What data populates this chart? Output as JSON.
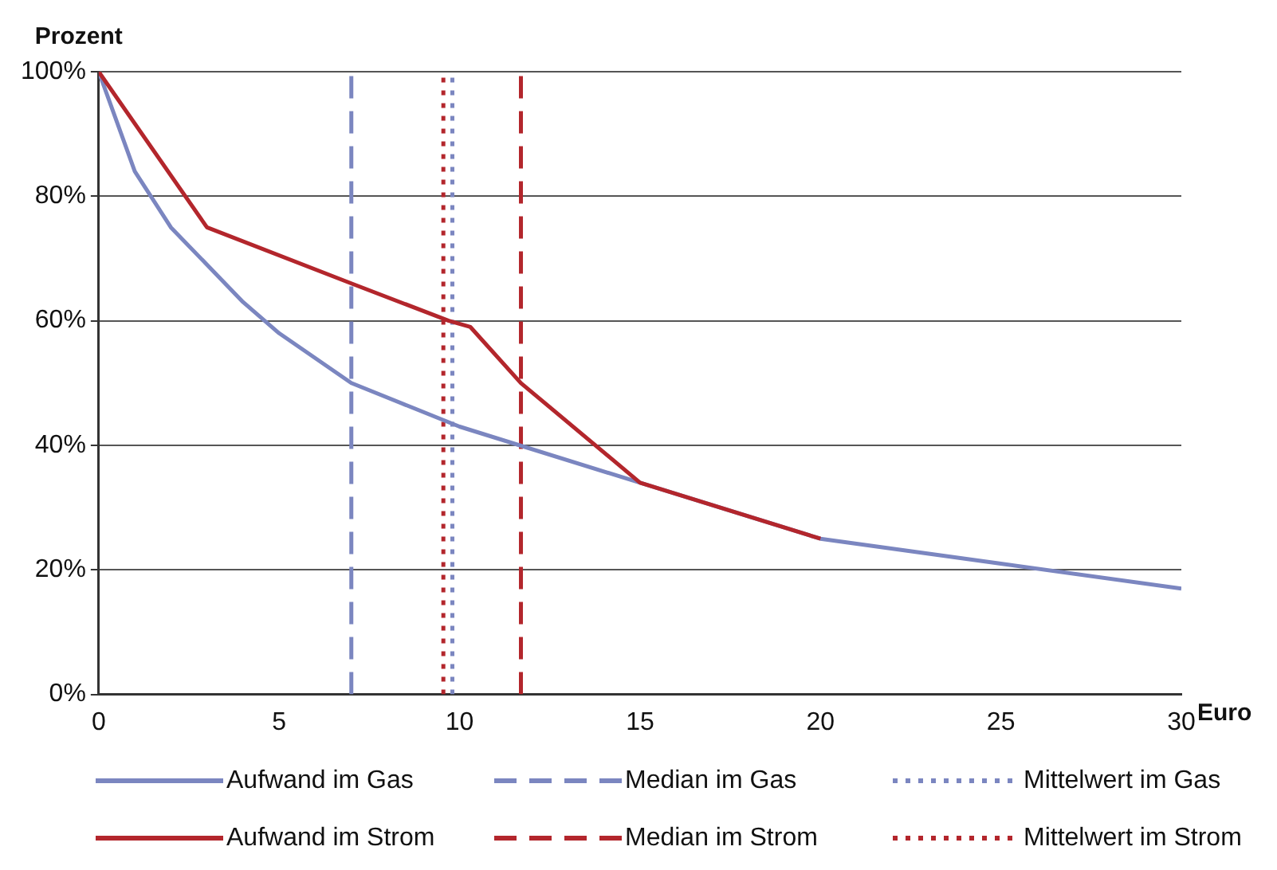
{
  "chart_data": {
    "type": "line",
    "xlabel": "Euro",
    "ylabel": "Prozent",
    "xlim": [
      0,
      30
    ],
    "xticks": [
      0,
      5,
      10,
      15,
      20,
      25,
      30
    ],
    "ylim": [
      0,
      100
    ],
    "yticks": [
      {
        "value": 0,
        "label": "0%"
      },
      {
        "value": 20,
        "label": "20%"
      },
      {
        "value": 40,
        "label": "40%"
      },
      {
        "value": 60,
        "label": "60%"
      },
      {
        "value": 80,
        "label": "80%"
      },
      {
        "value": 100,
        "label": "100%"
      }
    ],
    "grid": "y",
    "legend": "bottom",
    "marker": "none",
    "line_style": "solid",
    "series": [
      {
        "name": "Aufwand im Gas",
        "color": "#7b86c0",
        "x": [
          0,
          1,
          2,
          3,
          4,
          5,
          7,
          10,
          15,
          20,
          25,
          30
        ],
        "values": [
          100,
          84,
          75,
          69,
          63,
          58,
          50,
          43,
          34,
          25,
          21,
          17
        ]
      },
      {
        "name": "Aufwand im Strom",
        "color": "#b3262c",
        "x": [
          0,
          3,
          7,
          9.7,
          10.3,
          11.7,
          15,
          20
        ],
        "values": [
          100,
          75,
          66,
          60,
          59,
          50,
          34,
          25
        ]
      }
    ],
    "ref_lines": [
      {
        "axis": "x",
        "value": 7,
        "label": "Median im Gas",
        "color": "#7b86c0",
        "line_style": "dashed"
      },
      {
        "axis": "x",
        "value": 9.8,
        "label": "Mittelwert im Gas",
        "color": "#7b86c0",
        "line_style": "dotted"
      },
      {
        "axis": "x",
        "value": 11.7,
        "label": "Median im Strom",
        "color": "#b3262c",
        "line_style": "dashed"
      },
      {
        "axis": "x",
        "value": 9.55,
        "label": "Mittelwert im Strom",
        "color": "#b3262c",
        "line_style": "dotted"
      }
    ]
  }
}
